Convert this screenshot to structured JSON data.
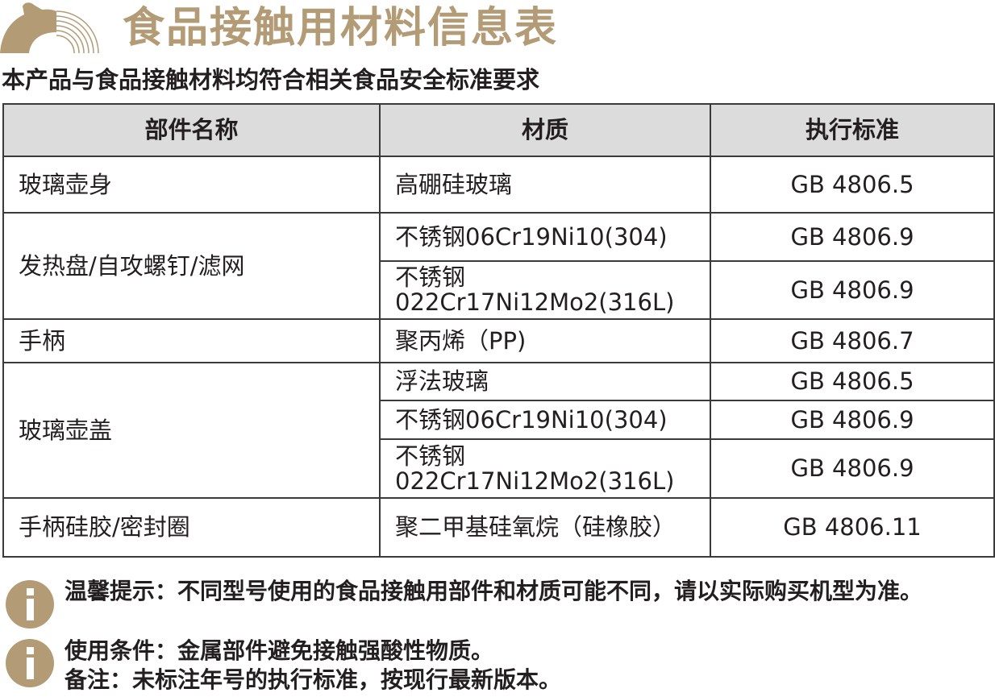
{
  "header": {
    "title": "食品接触用材料信息表",
    "subtitle": "本产品与食品接触材料均符合相关食品安全标准要求",
    "brand_color": "#b39b76"
  },
  "table": {
    "columns": [
      "部件名称",
      "材质",
      "执行标准"
    ],
    "groups": [
      {
        "part": "玻璃壶身",
        "rows": [
          {
            "material": "高硼硅玻璃",
            "standard": "GB 4806.5"
          }
        ]
      },
      {
        "part": "发热盘/自攻螺钉/滤网",
        "rows": [
          {
            "material": "不锈钢06Cr19Ni10(304)",
            "standard": "GB 4806.9"
          },
          {
            "material": "不锈钢 022Cr17Ni12Mo2(316L)",
            "standard": "GB 4806.9"
          }
        ]
      },
      {
        "part": "手柄",
        "rows": [
          {
            "material": "聚丙烯（PP)",
            "standard": "GB 4806.7"
          }
        ]
      },
      {
        "part": "玻璃壶盖",
        "rows": [
          {
            "material": "浮法玻璃",
            "standard": "GB 4806.5"
          },
          {
            "material": "不锈钢06Cr19Ni10(304)",
            "standard": "GB 4806.9"
          },
          {
            "material": "不锈钢 022Cr17Ni12Mo2(316L)",
            "standard": "GB 4806.9"
          }
        ]
      },
      {
        "part": "手柄硅胶/密封圈",
        "rows": [
          {
            "material": "聚二甲基硅氧烷（硅橡胶）",
            "standard": "GB 4806.11"
          }
        ]
      }
    ]
  },
  "notes": {
    "tip": "温馨提示：不同型号使用的食品接触用部件和材质可能不同，请以实际购买机型为准。",
    "usage": "使用条件：金属部件避免接触强酸性物质。",
    "remark": "备注：未标注年号的执行标准，按现行最新版本。",
    "icon": "info-icon"
  }
}
